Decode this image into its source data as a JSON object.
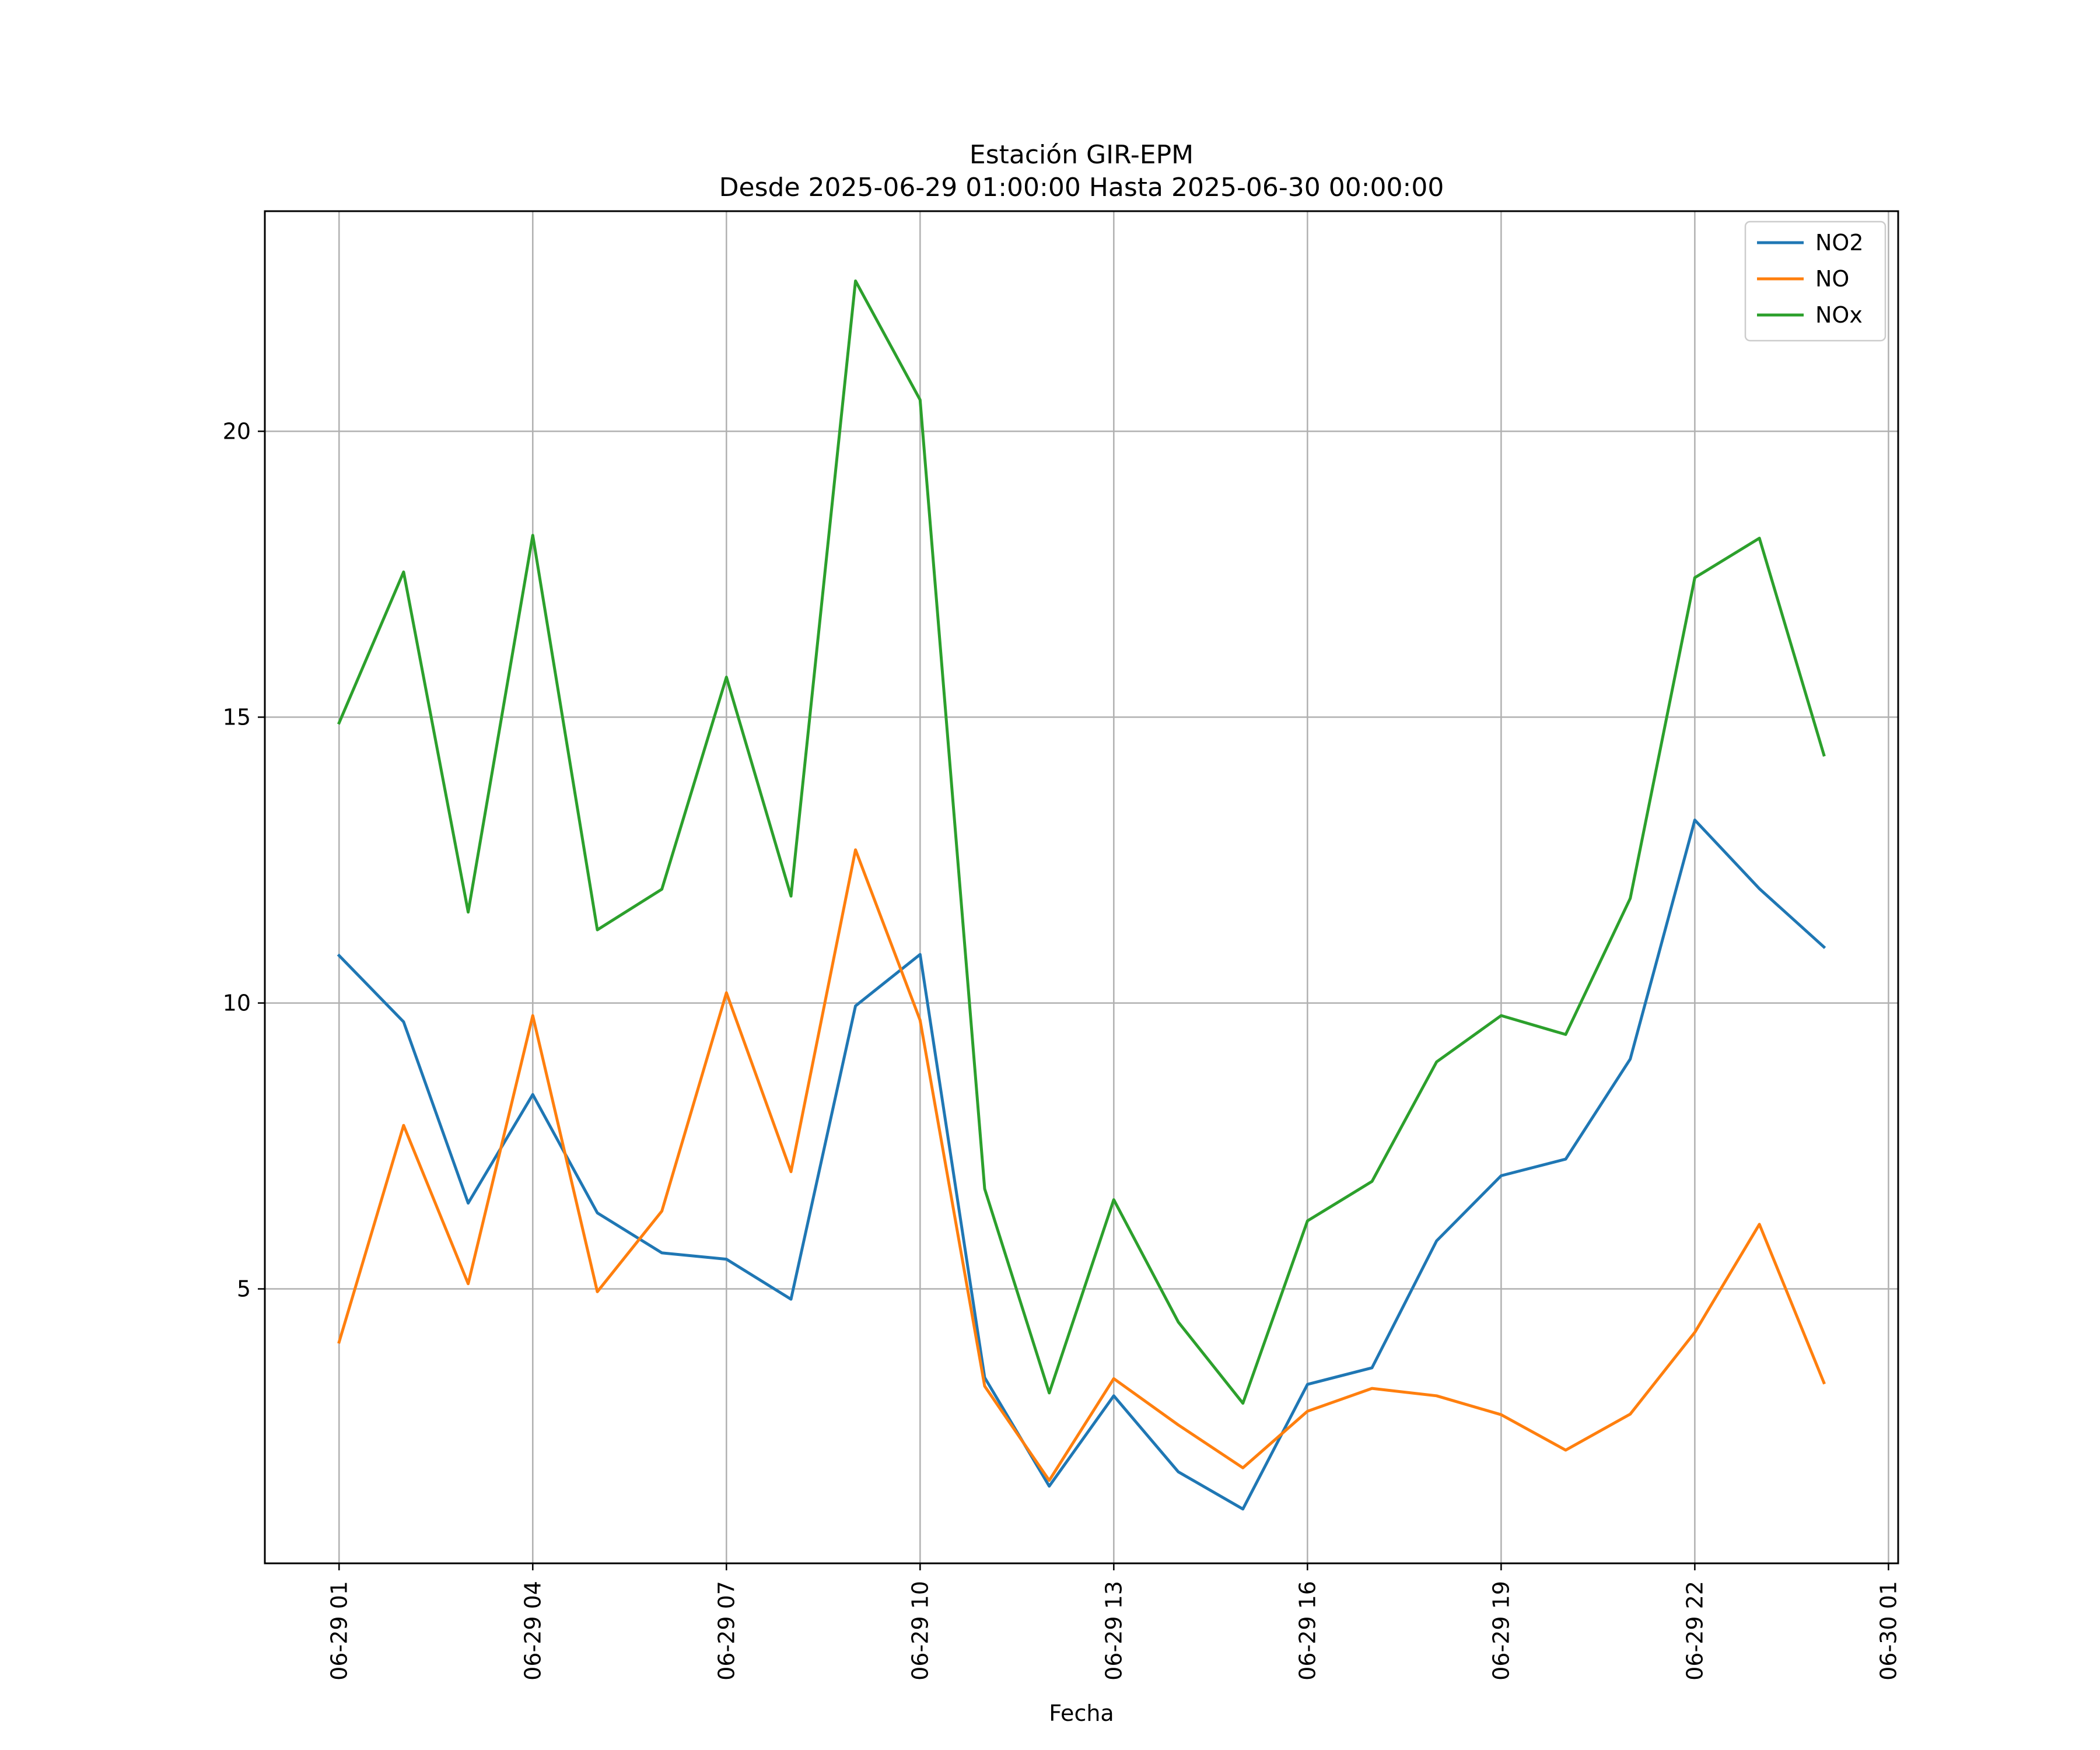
{
  "chart_data": {
    "type": "line",
    "title": "Estación GIR-EPM",
    "subtitle": "Desde 2025-06-29 01:00:00 Hasta 2025-06-30 00:00:00",
    "xlabel": "Fecha",
    "ylabel": "",
    "x": [
      "2025-06-29 01:00",
      "2025-06-29 02:00",
      "2025-06-29 03:00",
      "2025-06-29 04:00",
      "2025-06-29 05:00",
      "2025-06-29 06:00",
      "2025-06-29 07:00",
      "2025-06-29 08:00",
      "2025-06-29 09:00",
      "2025-06-29 10:00",
      "2025-06-29 11:00",
      "2025-06-29 12:00",
      "2025-06-29 13:00",
      "2025-06-29 14:00",
      "2025-06-29 15:00",
      "2025-06-29 16:00",
      "2025-06-29 17:00",
      "2025-06-29 18:00",
      "2025-06-29 19:00",
      "2025-06-29 20:00",
      "2025-06-29 21:00",
      "2025-06-29 22:00",
      "2025-06-29 23:00",
      "2025-06-30 00:00"
    ],
    "x_range": [
      "2025-06-28 23:51",
      "2025-06-30 01:09"
    ],
    "xticks": [
      {
        "value": "2025-06-29 01:00",
        "label": "06-29 01"
      },
      {
        "value": "2025-06-29 04:00",
        "label": "06-29 04"
      },
      {
        "value": "2025-06-29 07:00",
        "label": "06-29 07"
      },
      {
        "value": "2025-06-29 10:00",
        "label": "06-29 10"
      },
      {
        "value": "2025-06-29 13:00",
        "label": "06-29 13"
      },
      {
        "value": "2025-06-29 16:00",
        "label": "06-29 16"
      },
      {
        "value": "2025-06-29 19:00",
        "label": "06-29 19"
      },
      {
        "value": "2025-06-29 22:00",
        "label": "06-29 22"
      },
      {
        "value": "2025-06-30 01:00",
        "label": "06-30 01"
      }
    ],
    "ylim": [
      0.2,
      23.85
    ],
    "yticks": [
      {
        "value": 5,
        "label": "5"
      },
      {
        "value": 10,
        "label": "10"
      },
      {
        "value": 15,
        "label": "15"
      },
      {
        "value": 20,
        "label": "20"
      }
    ],
    "grid": true,
    "legend_position": "top-right",
    "series": [
      {
        "name": "NO2",
        "color": "#1f77b4",
        "values": [
          10.83,
          9.67,
          6.5,
          8.4,
          6.33,
          5.63,
          5.52,
          4.82,
          9.95,
          10.85,
          3.45,
          1.55,
          3.13,
          1.8,
          1.15,
          3.33,
          3.62,
          5.84,
          6.98,
          7.27,
          9.02,
          13.2,
          12.0,
          10.98
        ]
      },
      {
        "name": "NO",
        "color": "#ff7f0e",
        "values": [
          4.07,
          7.86,
          5.09,
          9.78,
          4.95,
          6.36,
          10.18,
          7.05,
          12.68,
          9.7,
          3.3,
          1.65,
          3.43,
          2.62,
          1.87,
          2.86,
          3.26,
          3.13,
          2.8,
          2.18,
          2.81,
          4.24,
          6.13,
          3.36
        ]
      },
      {
        "name": "NOx",
        "color": "#2ca02c",
        "values": [
          14.9,
          17.54,
          11.59,
          18.18,
          11.28,
          11.99,
          15.7,
          11.87,
          22.63,
          20.55,
          6.75,
          3.18,
          6.56,
          4.42,
          3.0,
          6.19,
          6.88,
          8.97,
          9.78,
          9.45,
          11.83,
          17.44,
          18.13,
          14.34
        ]
      }
    ]
  }
}
